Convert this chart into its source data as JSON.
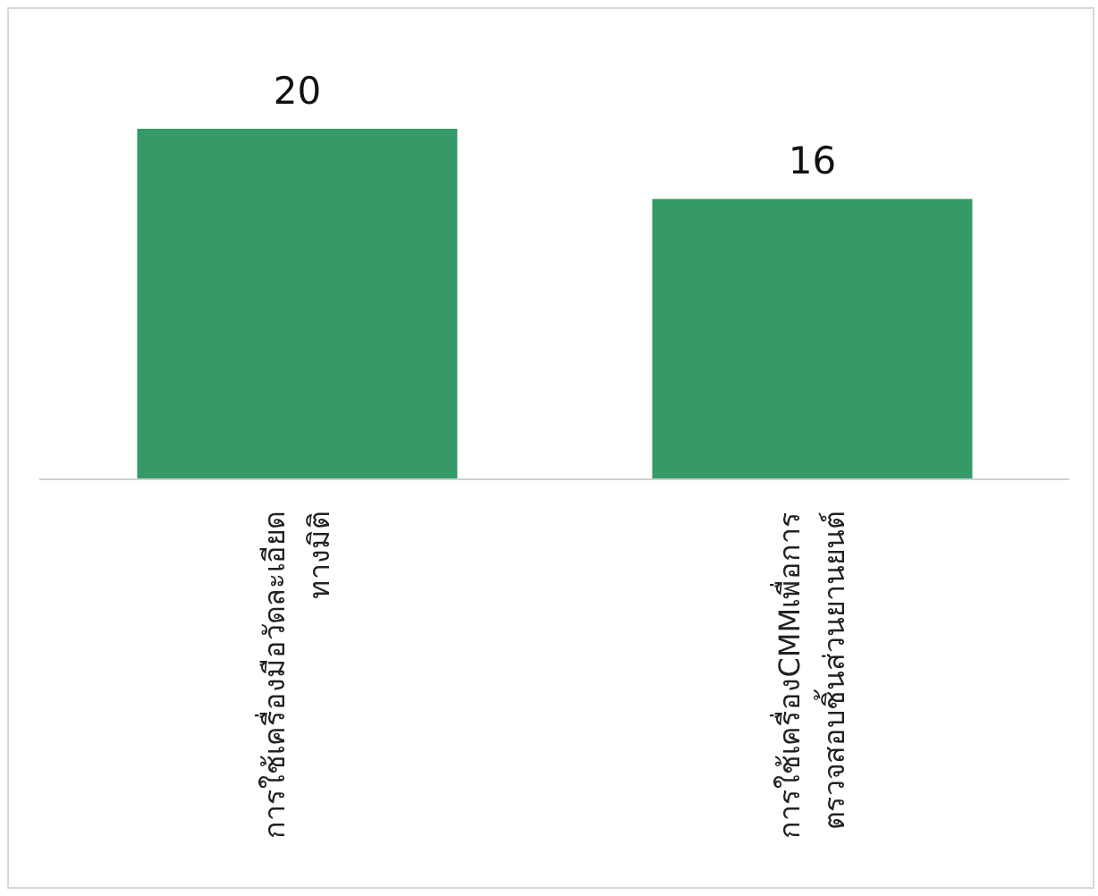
{
  "chart_data": {
    "type": "bar",
    "categories": [
      "การใช้เครื่องมือวัดละเอียดทางมิติ",
      "การใช้เครื่องCMMเพื่อการตรวจสอบชิ้นส่วนยานยนต์"
    ],
    "values": [
      20,
      16
    ],
    "color": "#359a68",
    "data_labels": true,
    "tick_labels": "x"
  }
}
